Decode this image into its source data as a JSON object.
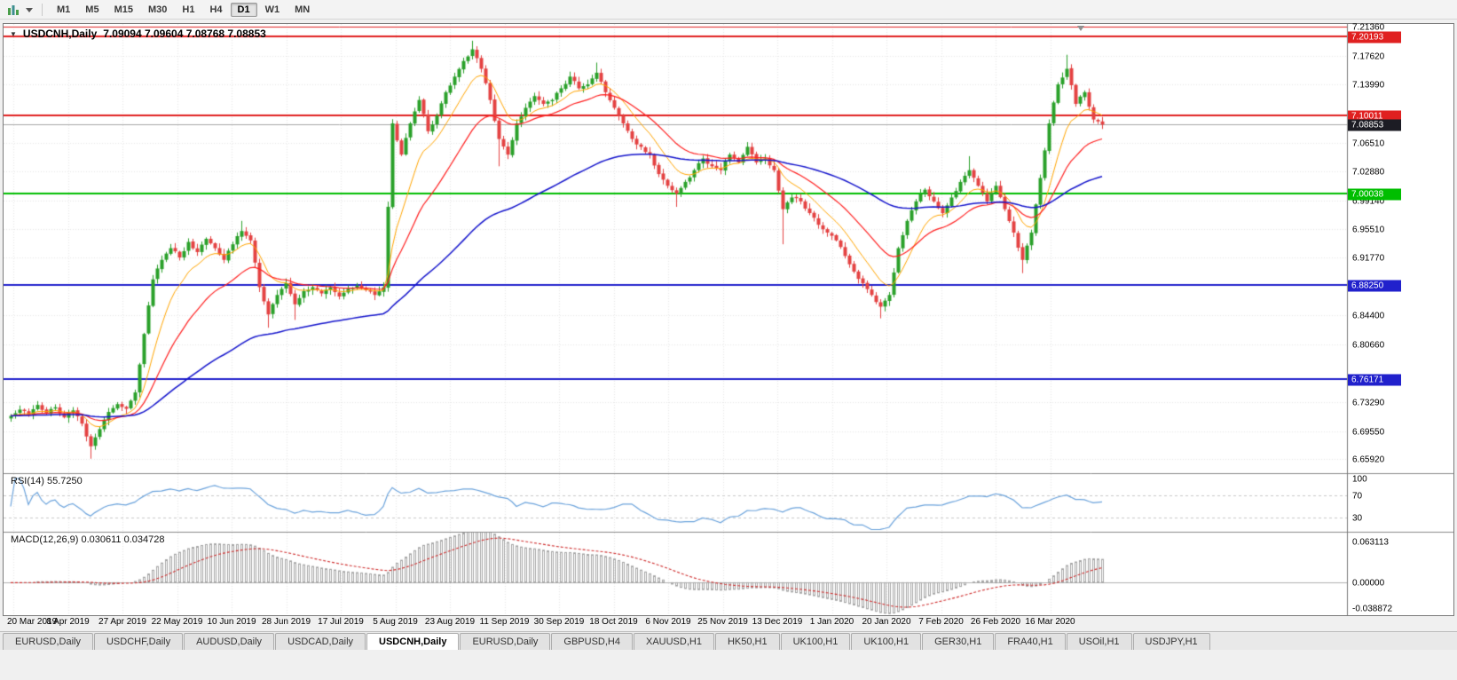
{
  "toolbar": {
    "icons": [
      "charts-icon",
      "caret-down-icon"
    ],
    "timeframes": [
      "M1",
      "M5",
      "M15",
      "M30",
      "H1",
      "H4",
      "D1",
      "W1",
      "MN"
    ],
    "active_timeframe": "D1"
  },
  "chart": {
    "collapse_glyph": "▼"
  },
  "chart_data": {
    "type": "candlestick",
    "symbol": "USDCNH",
    "period": "Daily",
    "title": "USDCNH,Daily",
    "ohlc_readout": "7.09094 7.09604 7.08768 7.08853",
    "open": "7.09094",
    "high": "7.09604",
    "low": "7.08768",
    "close": "7.08853",
    "price_domain": [
      6.6415,
      7.2175
    ],
    "series_closes": [
      6.715,
      6.723,
      6.716,
      6.729,
      6.718,
      6.726,
      6.713,
      6.722,
      6.705,
      6.676,
      6.698,
      6.72,
      6.73,
      6.724,
      6.745,
      6.82,
      6.89,
      6.915,
      6.93,
      6.918,
      6.938,
      6.925,
      6.942,
      6.93,
      6.915,
      6.935,
      6.952,
      6.94,
      6.88,
      6.845,
      6.87,
      6.885,
      6.858,
      6.875,
      6.88,
      6.872,
      6.88,
      6.868,
      6.878,
      6.882,
      6.876,
      6.87,
      6.88,
      7.09,
      7.05,
      7.09,
      7.12,
      7.08,
      7.1,
      7.13,
      7.15,
      7.17,
      7.185,
      7.16,
      7.12,
      7.07,
      7.05,
      7.09,
      7.11,
      7.125,
      7.115,
      7.12,
      7.135,
      7.15,
      7.135,
      7.14,
      7.155,
      7.13,
      7.11,
      7.09,
      7.07,
      7.06,
      7.05,
      7.025,
      7.01,
      7.0,
      7.015,
      7.03,
      7.045,
      7.035,
      7.03,
      7.05,
      7.04,
      7.06,
      7.04,
      7.045,
      7.03,
      6.98,
      6.995,
      6.99,
      6.975,
      6.96,
      6.95,
      6.94,
      6.92,
      6.9,
      6.885,
      6.87,
      6.855,
      6.87,
      6.93,
      6.965,
      6.99,
      7.005,
      6.99,
      6.975,
      6.995,
      7.015,
      7.03,
      7.01,
      6.99,
      7.01,
      6.98,
      6.95,
      6.915,
      6.95,
      7.02,
      7.09,
      7.14,
      7.16,
      7.115,
      7.13,
      7.095,
      7.0885
    ],
    "special_wicks": {
      "9": {
        "low": 6.66
      },
      "26": {
        "high": 6.965
      },
      "29": {
        "low": 6.828
      },
      "32": {
        "low": 6.838
      },
      "52": {
        "high": 7.196
      },
      "55": {
        "low": 7.035
      },
      "66": {
        "high": 7.168
      },
      "75": {
        "low": 6.983
      },
      "87": {
        "low": 6.935
      },
      "98": {
        "low": 6.84
      },
      "108": {
        "high": 7.048
      },
      "114": {
        "low": 6.898
      },
      "119": {
        "high": 7.178
      }
    },
    "price_ticks": [
      {
        "label": "7.21360",
        "price": 7.2136
      },
      {
        "label": "7.17620",
        "price": 7.1762
      },
      {
        "label": "7.13990",
        "price": 7.1399
      },
      {
        "label": "7.06510",
        "price": 7.0651
      },
      {
        "label": "7.02880",
        "price": 7.0288
      },
      {
        "label": "6.99140",
        "price": 6.9914
      },
      {
        "label": "6.95510",
        "price": 6.9551
      },
      {
        "label": "6.91770",
        "price": 6.9177
      },
      {
        "label": "6.84400",
        "price": 6.844
      },
      {
        "label": "6.80660",
        "price": 6.8066
      },
      {
        "label": "6.73290",
        "price": 6.7329
      },
      {
        "label": "6.69550",
        "price": 6.6955
      },
      {
        "label": "6.65920",
        "price": 6.6592
      }
    ],
    "price_badges": [
      {
        "label": "7.20193",
        "price": 7.20193,
        "color": "#E02020",
        "name": "resistance-line-badge"
      },
      {
        "label": "7.10011",
        "price": 7.10011,
        "color": "#E02020",
        "name": "resistance-line-badge"
      },
      {
        "label": "7.08853",
        "price": 7.08853,
        "color": "#1c1c24",
        "name": "current-price-badge"
      },
      {
        "label": "7.00038",
        "price": 7.00038,
        "color": "#00BE00",
        "name": "pivot-line-badge"
      },
      {
        "label": "6.88250",
        "price": 6.8825,
        "color": "#2121CC",
        "name": "support-line-badge"
      },
      {
        "label": "6.76171",
        "price": 6.76171,
        "color": "#2121CC",
        "name": "support-line-badge"
      }
    ],
    "hlines": [
      {
        "price": 7.2136,
        "color": "#E02020",
        "width": 1
      },
      {
        "price": 7.20193,
        "color": "#E02020",
        "width": 2
      },
      {
        "price": 7.10011,
        "color": "#E02020",
        "width": 2
      },
      {
        "price": 7.08853,
        "color": "#A8A8A8",
        "width": 1
      },
      {
        "price": 7.00038,
        "color": "#00BE00",
        "width": 2
      },
      {
        "price": 6.8825,
        "color": "#2121CC",
        "width": 2
      },
      {
        "price": 6.76171,
        "color": "#2121CC",
        "width": 2
      }
    ],
    "date_labels": [
      "20 Mar 2019",
      "8 Apr 2019",
      "27 Apr 2019",
      "22 May 2019",
      "10 Jun 2019",
      "28 Jun 2019",
      "17 Jul 2019",
      "5 Aug 2019",
      "23 Aug 2019",
      "11 Sep 2019",
      "30 Sep 2019",
      "18 Oct 2019",
      "6 Nov 2019",
      "25 Nov 2019",
      "13 Dec 2019",
      "1 Jan 2020",
      "20 Jan 2020",
      "7 Feb 2020",
      "26 Feb 2020",
      "16 Mar 2020"
    ],
    "indicators": {
      "rsi": {
        "label": "RSI(14) 55.7250",
        "current": "55.7250",
        "levels": [
          {
            "label": "100",
            "value": 100
          },
          {
            "label": "70",
            "value": 70
          },
          {
            "label": "30",
            "value": 30
          }
        ]
      },
      "macd": {
        "label": "MACD(12,26,9) 0.030611 0.034728",
        "current_macd": "0.030611",
        "current_signal": "0.034728",
        "scale": [
          {
            "label": "0.063113",
            "value": 0.063113
          },
          {
            "label": "0.00000",
            "value": 0
          },
          {
            "label": "-0.038872",
            "value": -0.038872
          }
        ]
      }
    },
    "colors": {
      "bull": "#2AA12A",
      "bear": "#E44242",
      "ma_fast": "#FFA500",
      "ma_mid": "#FF2020",
      "ma_slow": "#1414CC",
      "rsi_line": "#6BA3DC",
      "macd_hist": "#A6A6A6",
      "macd_signal": "#D03030",
      "grid": "#E7E7E7",
      "resistance": "#E02020",
      "pivot_green": "#00BE00",
      "support_blue": "#2121CC",
      "current_price_line": "#A8A8A8"
    }
  },
  "tabbar": {
    "tabs": [
      "EURUSD,Daily",
      "USDCHF,Daily",
      "AUDUSD,Daily",
      "USDCAD,Daily",
      "USDCNH,Daily",
      "EURUSD,Daily",
      "GBPUSD,H4",
      "XAUUSD,H1",
      "HK50,H1",
      "UK100,H1",
      "UK100,H1",
      "GER30,H1",
      "FRA40,H1",
      "USOil,H1",
      "USDJPY,H1"
    ],
    "active_index": 4
  }
}
